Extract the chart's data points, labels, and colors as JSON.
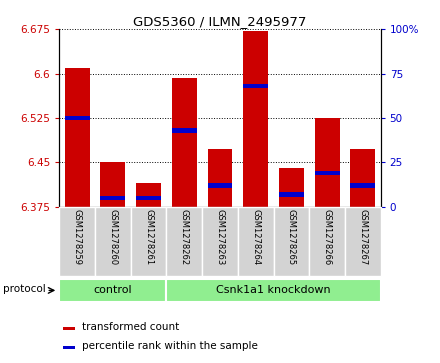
{
  "title": "GDS5360 / ILMN_2495977",
  "samples": [
    "GSM1278259",
    "GSM1278260",
    "GSM1278261",
    "GSM1278262",
    "GSM1278263",
    "GSM1278264",
    "GSM1278265",
    "GSM1278266",
    "GSM1278267"
  ],
  "group_labels": [
    "control",
    "Csnk1a1 knockdown"
  ],
  "control_count": 3,
  "knockdown_count": 6,
  "bar_base": 6.375,
  "transformed_counts": [
    6.61,
    6.45,
    6.415,
    6.593,
    6.473,
    6.672,
    6.44,
    6.525,
    6.472
  ],
  "percentile_ranks": [
    50,
    5,
    5,
    43,
    12,
    68,
    7,
    19,
    12
  ],
  "ylim": [
    6.375,
    6.675
  ],
  "yticks": [
    6.375,
    6.45,
    6.525,
    6.6,
    6.675
  ],
  "right_yticks": [
    0,
    25,
    50,
    75,
    100
  ],
  "right_ylim": [
    0,
    100
  ],
  "bar_color_red": "#cc0000",
  "bar_color_blue": "#0000cc",
  "tick_label_color_left": "#cc0000",
  "tick_label_color_right": "#0000cc",
  "bar_width": 0.7,
  "background_xticklabel": "#d3d3d3",
  "background_grouplabel": "#90ee90",
  "protocol_label": "protocol",
  "legend_items": [
    "transformed count",
    "percentile rank within the sample"
  ]
}
